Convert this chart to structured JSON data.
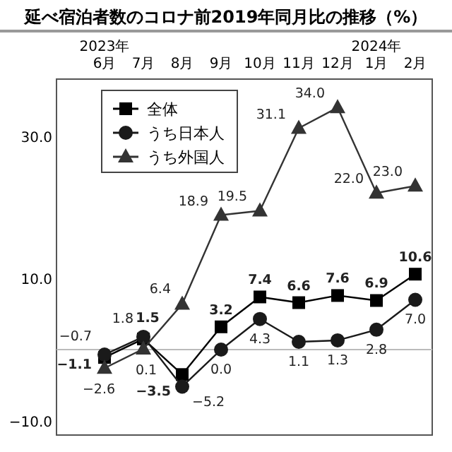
{
  "chart_data": {
    "type": "line",
    "title": "延べ宿泊者数のコロナ前2019年同月比の推移（%）",
    "categories": [
      "2023年\n6月",
      "7月",
      "8月",
      "9月",
      "10月",
      "11月",
      "12月",
      "2024年\n1月",
      "2月"
    ],
    "series": [
      {
        "name": "全体",
        "color": "#000000",
        "marker": "square",
        "values": [
          -1.1,
          1.5,
          -3.5,
          3.2,
          7.4,
          6.6,
          7.6,
          6.9,
          10.6
        ],
        "value_labels": [
          "−1.1",
          "1.5",
          "−3.5",
          "3.2",
          "7.4",
          "6.6",
          "7.6",
          "6.9",
          "10.6"
        ]
      },
      {
        "name": "うち日本人",
        "color": "#1a1a1a",
        "marker": "circle",
        "values": [
          -0.7,
          1.8,
          -5.2,
          0.0,
          4.3,
          1.1,
          1.3,
          2.8,
          7.0
        ],
        "value_labels": [
          "−0.7",
          "1.8",
          "−5.2",
          "0.0",
          "4.3",
          "1.1",
          "1.3",
          "2.8",
          "7.0"
        ]
      },
      {
        "name": "うち外国人",
        "color": "#333333",
        "marker": "triangle",
        "values": [
          -2.6,
          0.1,
          6.4,
          18.9,
          19.5,
          31.1,
          34.0,
          22.0,
          23.0
        ],
        "value_labels": [
          "−2.6",
          "0.1",
          "6.4",
          "18.9",
          "19.5",
          "31.1",
          "34.0",
          "22.0",
          "23.0"
        ]
      }
    ],
    "ylim": [
      -12,
      38
    ],
    "yticks": [
      {
        "value": 30,
        "label": "30.0"
      },
      {
        "value": 10,
        "label": "10.0"
      },
      {
        "value": -10,
        "label": "−10.0"
      }
    ],
    "ref_lines": [
      {
        "axis": "y",
        "value": 0,
        "color": "#bbbbbb"
      }
    ],
    "legend": "top left",
    "grid": false
  }
}
